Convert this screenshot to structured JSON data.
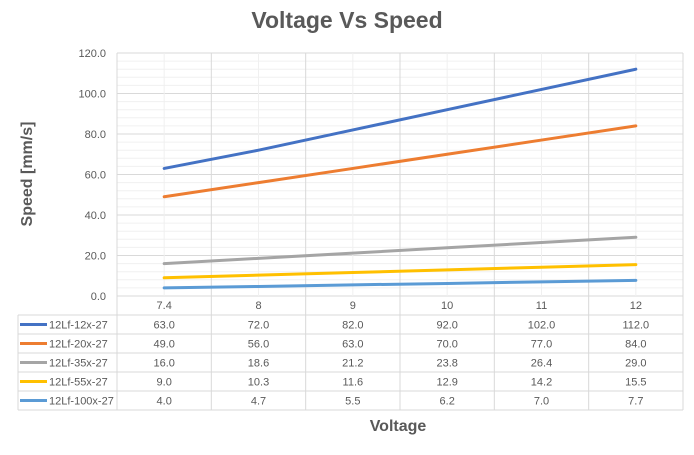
{
  "chart_data": {
    "type": "line",
    "title": "Voltage Vs Speed",
    "xlabel": "Voltage",
    "ylabel": "Speed [mm/s]",
    "categories": [
      "7.4",
      "8",
      "9",
      "10",
      "11",
      "12"
    ],
    "ylim": [
      0,
      120
    ],
    "yticks": [
      "0.0",
      "20.0",
      "40.0",
      "60.0",
      "80.0",
      "100.0",
      "120.0"
    ],
    "grid": true,
    "legend": "data-table",
    "series": [
      {
        "name": "12Lf-12x-27",
        "color": "#4472C4",
        "values": [
          63.0,
          72.0,
          82.0,
          92.0,
          102.0,
          112.0
        ],
        "labels": [
          "63.0",
          "72.0",
          "82.0",
          "92.0",
          "102.0",
          "112.0"
        ]
      },
      {
        "name": "12Lf-20x-27",
        "color": "#ED7D31",
        "values": [
          49.0,
          56.0,
          63.0,
          70.0,
          77.0,
          84.0
        ],
        "labels": [
          "49.0",
          "56.0",
          "63.0",
          "70.0",
          "77.0",
          "84.0"
        ]
      },
      {
        "name": "12Lf-35x-27",
        "color": "#A5A5A5",
        "values": [
          16.0,
          18.6,
          21.2,
          23.8,
          26.4,
          29.0
        ],
        "labels": [
          "16.0",
          "18.6",
          "21.2",
          "23.8",
          "26.4",
          "29.0"
        ]
      },
      {
        "name": "12Lf-55x-27",
        "color": "#FFC000",
        "values": [
          9.0,
          10.3,
          11.6,
          12.9,
          14.2,
          15.5
        ],
        "labels": [
          "9.0",
          "10.3",
          "11.6",
          "12.9",
          "14.2",
          "15.5"
        ]
      },
      {
        "name": "12Lf-100x-27",
        "color": "#5B9BD5",
        "values": [
          4.0,
          4.7,
          5.5,
          6.2,
          7.0,
          7.7
        ],
        "labels": [
          "4.0",
          "4.7",
          "5.5",
          "6.2",
          "7.0",
          "7.7"
        ]
      }
    ]
  }
}
